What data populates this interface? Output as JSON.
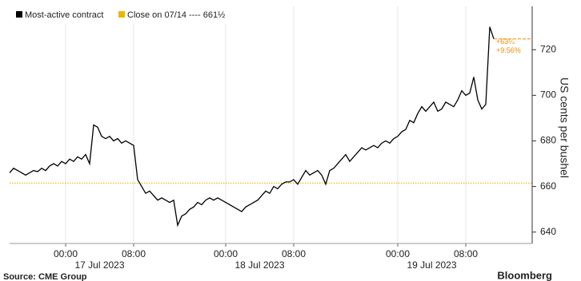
{
  "chart_data": {
    "type": "line",
    "y_label": "US cents per bushel",
    "source": "Source: CME Group",
    "brand": "Bloomberg",
    "categories": [
      null,
      null,
      null,
      null,
      null,
      null,
      null,
      null,
      null,
      null,
      null,
      null,
      null,
      null,
      "00:00",
      null,
      null,
      null,
      null,
      null,
      null,
      null,
      null,
      null,
      null,
      null,
      null,
      null,
      null,
      null,
      null,
      "08:00",
      null,
      null,
      null,
      null,
      null,
      null,
      null,
      null,
      null,
      null,
      null,
      null,
      null,
      null,
      null,
      null,
      null,
      null,
      null,
      null,
      null,
      null,
      "00:00",
      null,
      null,
      null,
      null,
      null,
      null,
      null,
      null,
      null,
      null,
      null,
      null,
      null,
      null,
      null,
      null,
      "08:00",
      null,
      null,
      null,
      null,
      null,
      null,
      null,
      null,
      null,
      null,
      null,
      null,
      null,
      null,
      null,
      null,
      null,
      null,
      null,
      null,
      null,
      null,
      null,
      null,
      null,
      "00:00",
      null,
      null,
      null,
      null,
      null,
      null,
      null,
      null,
      null,
      null,
      null,
      null,
      null,
      null,
      null,
      null,
      "08:00",
      null,
      null,
      null,
      null,
      null,
      null,
      null
    ],
    "x_dates": [
      "17 Jul 2023",
      "18 Jul 2023",
      "19 Jul 2023"
    ],
    "series": [
      {
        "name": "Most-active contract",
        "color": "#000000",
        "values": [
          666,
          668,
          667,
          666,
          665,
          666,
          667,
          666.5,
          668,
          667,
          669,
          670,
          669,
          671,
          670,
          672,
          671,
          673,
          672,
          674,
          670,
          687,
          686,
          682,
          681,
          682,
          680,
          681,
          679,
          680,
          679,
          678,
          663,
          660,
          657,
          658,
          656,
          654,
          655,
          654,
          653,
          654,
          643,
          647,
          648,
          650,
          651,
          653,
          652,
          654,
          655,
          654,
          655,
          654,
          653,
          652,
          651,
          650,
          649,
          651,
          652,
          653,
          654,
          656,
          658,
          657,
          660,
          659,
          661,
          662,
          662,
          663,
          661,
          664,
          667,
          665,
          666,
          667,
          665,
          661,
          667,
          668,
          670,
          672,
          674,
          671,
          673,
          675,
          677,
          676,
          677,
          678,
          677,
          679,
          680,
          679,
          681,
          682,
          684,
          685,
          689,
          688,
          692,
          695,
          693,
          695,
          697,
          693,
          694,
          697,
          696,
          695,
          698,
          702,
          700,
          701,
          708,
          698,
          694,
          696,
          730,
          724.75
        ]
      }
    ],
    "reference": {
      "name": "Close on 07/14 ---- 661½",
      "value": 661.5,
      "color": "#f0b400"
    },
    "last_color": "#f08c00",
    "annotations": [
      "+63¼",
      "+9.56%"
    ],
    "ylim": [
      635,
      739
    ],
    "yticks": [
      640,
      660,
      680,
      700,
      720
    ],
    "grid": true
  }
}
